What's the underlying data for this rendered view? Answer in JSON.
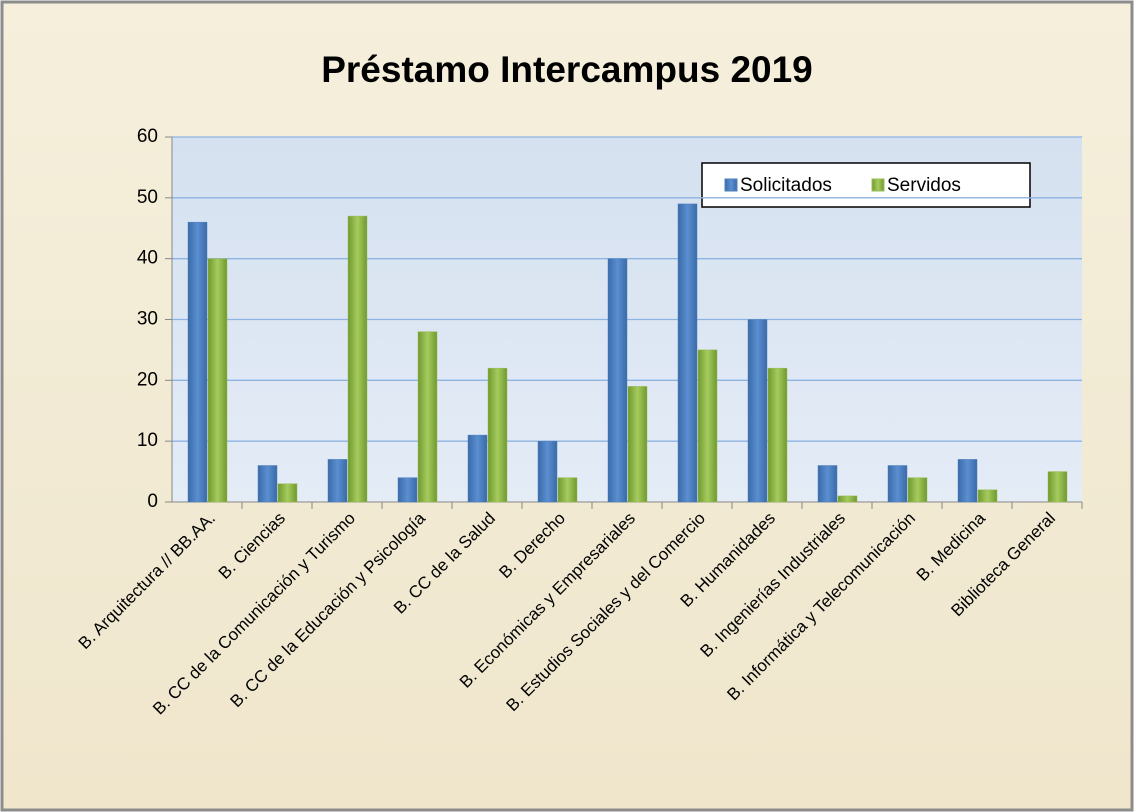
{
  "chart_data": {
    "type": "bar",
    "title": "Préstamo Intercampus 2019",
    "categories": [
      "B. Arquitectura // BB.AA.",
      "B. Ciencias",
      "B. CC de la Comunicación y Turismo",
      "B. CC de la Educación y Psicología",
      "B. CC de la Salud",
      "B. Derecho",
      "B. Económicas y Empresariales",
      "B. Estudios Sociales y del Comercio",
      "B. Humanidades",
      "B. Ingenierías Industriales",
      "B. Informática y Telecomunicación",
      "B. Medicina",
      "Biblioteca General"
    ],
    "series": [
      {
        "name": "Solicitados",
        "color": "#4f81bd",
        "values": [
          46,
          6,
          7,
          4,
          11,
          10,
          40,
          49,
          30,
          6,
          6,
          7,
          0
        ]
      },
      {
        "name": "Servidos",
        "color": "#9bbb59",
        "values": [
          40,
          3,
          47,
          28,
          22,
          4,
          19,
          25,
          22,
          1,
          4,
          2,
          5
        ]
      }
    ],
    "ylim": [
      0,
      60
    ],
    "yticks": [
      0,
      10,
      20,
      30,
      40,
      50,
      60
    ],
    "grid": true,
    "legend": "top-right"
  }
}
